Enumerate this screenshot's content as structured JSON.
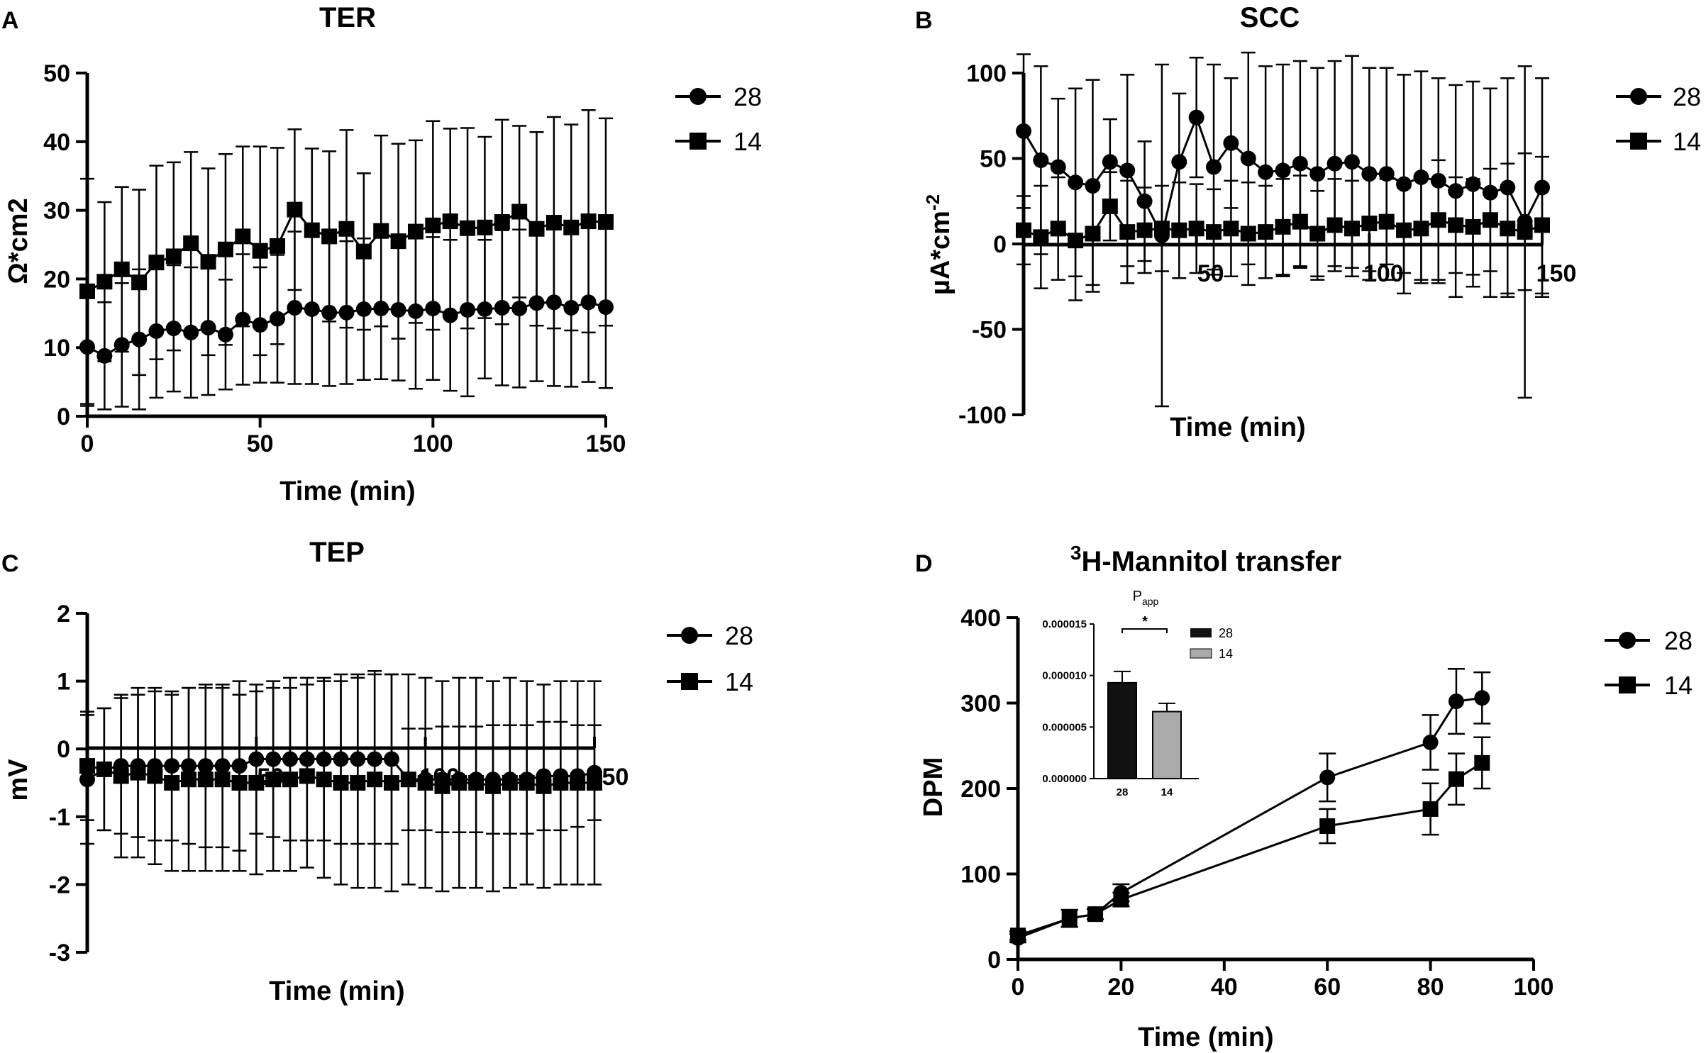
{
  "chart_data": [
    {
      "panel_label": "A",
      "type": "line",
      "title": "TER",
      "xlabel": "Time (min)",
      "ylabel": "Ω*cm2",
      "xlim": [
        0,
        150
      ],
      "ylim": [
        0,
        50
      ],
      "xticks": [
        "0",
        "50",
        "100",
        "150"
      ],
      "yticks": [
        "0",
        "10",
        "20",
        "30",
        "40",
        "50"
      ],
      "x": [
        0,
        5,
        10,
        15,
        20,
        25,
        30,
        35,
        40,
        45,
        50,
        55,
        60,
        65,
        70,
        75,
        80,
        85,
        90,
        95,
        100,
        105,
        110,
        115,
        120,
        125,
        130,
        135,
        140,
        145,
        150
      ],
      "series": [
        {
          "name": "28",
          "marker": "circle",
          "values": [
            10.1,
            8.8,
            10.4,
            11.2,
            12.4,
            12.8,
            12.2,
            12.9,
            11.9,
            14.1,
            13.3,
            14.2,
            15.8,
            15.6,
            15.1,
            15.1,
            15.6,
            15.7,
            15.5,
            15.3,
            15.7,
            14.7,
            15.5,
            15.6,
            15.8,
            15.7,
            16.5,
            16.6,
            15.8,
            16.6,
            15.9
          ],
          "errors": [
            8.6,
            7.8,
            9.0,
            10.2,
            9.7,
            9.2,
            9.5,
            9.8,
            8.0,
            9.5,
            8.4,
            9.3,
            11.1,
            10.9,
            10.7,
            10.4,
            10.3,
            10.3,
            10.3,
            11.3,
            10.4,
            11.0,
            12.6,
            10.1,
            11.3,
            11.5,
            11.4,
            12.2,
            11.5,
            11.6,
            11.8
          ]
        },
        {
          "name": "14",
          "marker": "square",
          "values": [
            18.2,
            19.6,
            21.4,
            19.5,
            22.4,
            23.3,
            25.2,
            22.5,
            24.3,
            26.2,
            24.1,
            24.8,
            30.1,
            27.1,
            26.2,
            27.3,
            24.0,
            27.0,
            25.5,
            26.9,
            27.8,
            28.4,
            27.4,
            27.5,
            28.3,
            29.8,
            27.3,
            28.2,
            27.5,
            28.4,
            28.3
          ],
          "errors": [
            16.4,
            11.6,
            12.0,
            13.5,
            14.1,
            13.7,
            13.3,
            13.6,
            13.9,
            13.1,
            15.2,
            14.3,
            11.7,
            11.9,
            12.4,
            14.4,
            11.4,
            13.9,
            14.2,
            13.3,
            15.2,
            13.5,
            14.6,
            13.2,
            14.9,
            12.5,
            14.1,
            15.4,
            15.0,
            16.2,
            15.1
          ]
        }
      ],
      "legend": [
        "28",
        "14"
      ]
    },
    {
      "panel_label": "B",
      "type": "line",
      "title": "SCC",
      "xlabel": "Time (min)",
      "ylabel_main": "µA*cm",
      "ylabel_sup": "-2",
      "xlim": [
        0,
        150
      ],
      "ylim": [
        -100,
        100
      ],
      "xticks": [
        "50",
        "100",
        "150"
      ],
      "yticks": [
        "-100",
        "-50",
        "0",
        "50",
        "100"
      ],
      "x": [
        0,
        5,
        10,
        15,
        20,
        25,
        30,
        35,
        40,
        45,
        50,
        55,
        60,
        65,
        70,
        75,
        80,
        85,
        90,
        95,
        100,
        105,
        110,
        115,
        120,
        125,
        130,
        135,
        140,
        145,
        150
      ],
      "series": [
        {
          "name": "28",
          "marker": "circle",
          "values": [
            66,
            49,
            45,
            36,
            34,
            48,
            43,
            25,
            5,
            48,
            74,
            45,
            59,
            50,
            42,
            43,
            47,
            41,
            47,
            48,
            41,
            41,
            35,
            39,
            37,
            31,
            35,
            30,
            33,
            13,
            33
          ],
          "errors": [
            45,
            55,
            40,
            55,
            62,
            25,
            56,
            35,
            100,
            40,
            35,
            60,
            38,
            62,
            62,
            62,
            60,
            62,
            60,
            62,
            62,
            62,
            64,
            62,
            60,
            62,
            60,
            61,
            64,
            40,
            64
          ]
        },
        {
          "name": "14",
          "marker": "square",
          "values": [
            8,
            4,
            9,
            2,
            6,
            22,
            7,
            8,
            9,
            8,
            9,
            7,
            9,
            6,
            7,
            10,
            13,
            6,
            11,
            9,
            12,
            13,
            8,
            9,
            14,
            11,
            10,
            14,
            9,
            7,
            11
          ],
          "errors": [
            20,
            30,
            30,
            35,
            30,
            20,
            30,
            25,
            25,
            28,
            26,
            25,
            28,
            30,
            27,
            28,
            27,
            25,
            27,
            28,
            28,
            25,
            25,
            30,
            35,
            28,
            28,
            30,
            38,
            97,
            40
          ]
        }
      ],
      "legend": [
        "28",
        "14"
      ]
    },
    {
      "panel_label": "C",
      "type": "line",
      "title": "TEP",
      "xlabel": "Time (min)",
      "ylabel": "mV",
      "xlim": [
        0,
        150
      ],
      "ylim": [
        -3,
        2
      ],
      "xticks": [
        "50",
        "100",
        "150"
      ],
      "yticks": [
        "-3",
        "-2",
        "-1",
        "0",
        "1",
        "2"
      ],
      "x": [
        0,
        5,
        10,
        15,
        20,
        25,
        30,
        35,
        40,
        45,
        50,
        55,
        60,
        65,
        70,
        75,
        80,
        85,
        90,
        95,
        100,
        105,
        110,
        115,
        120,
        125,
        130,
        135,
        140,
        145,
        150
      ],
      "series": [
        {
          "name": "28",
          "marker": "circle",
          "values": [
            -0.45,
            -0.3,
            -0.25,
            -0.25,
            -0.25,
            -0.25,
            -0.25,
            -0.25,
            -0.25,
            -0.25,
            -0.15,
            -0.15,
            -0.15,
            -0.15,
            -0.15,
            -0.15,
            -0.15,
            -0.15,
            -0.15,
            -0.45,
            -0.45,
            -0.45,
            -0.45,
            -0.45,
            -0.45,
            -0.45,
            -0.45,
            -0.4,
            -0.4,
            -0.4,
            -0.35
          ],
          "errors": [
            0.95,
            0.9,
            1.0,
            1.05,
            1.1,
            1.1,
            1.15,
            1.2,
            1.2,
            1.25,
            1.1,
            1.15,
            1.2,
            1.2,
            1.2,
            1.25,
            1.25,
            1.25,
            1.25,
            0.75,
            0.75,
            0.78,
            0.78,
            0.78,
            0.8,
            0.8,
            0.8,
            0.8,
            0.8,
            0.75,
            0.7
          ]
        },
        {
          "name": "14",
          "marker": "square",
          "values": [
            -0.25,
            -0.3,
            -0.4,
            -0.35,
            -0.4,
            -0.5,
            -0.45,
            -0.45,
            -0.45,
            -0.5,
            -0.5,
            -0.45,
            -0.45,
            -0.4,
            -0.45,
            -0.5,
            -0.5,
            -0.45,
            -0.5,
            -0.45,
            -0.5,
            -0.55,
            -0.5,
            -0.5,
            -0.55,
            -0.5,
            -0.5,
            -0.55,
            -0.5,
            -0.5,
            -0.5
          ],
          "errors": [
            0.8,
            0.9,
            1.2,
            1.25,
            1.3,
            1.3,
            1.35,
            1.35,
            1.35,
            1.3,
            1.35,
            1.35,
            1.35,
            1.35,
            1.45,
            1.5,
            1.55,
            1.6,
            1.6,
            1.55,
            1.55,
            1.55,
            1.55,
            1.55,
            1.55,
            1.55,
            1.5,
            1.5,
            1.5,
            1.5,
            1.5
          ]
        }
      ],
      "legend": [
        "28",
        "14"
      ]
    },
    {
      "panel_label": "D",
      "type": "line",
      "title_sup": "3",
      "title_main": "H-Mannitol transfer",
      "xlabel": "Time (min)",
      "ylabel": "DPM",
      "xlim": [
        0,
        100
      ],
      "ylim": [
        0,
        400
      ],
      "xticks": [
        "0",
        "20",
        "40",
        "60",
        "80",
        "100"
      ],
      "yticks": [
        "0",
        "100",
        "200",
        "300",
        "400"
      ],
      "x": [
        0,
        10,
        15,
        20,
        60,
        80,
        85,
        90
      ],
      "series": [
        {
          "name": "28",
          "marker": "circle",
          "values": [
            25,
            48,
            53,
            78,
            213,
            254,
            302,
            306
          ],
          "errors": [
            5,
            10,
            6,
            10,
            28,
            32,
            38,
            30
          ]
        },
        {
          "name": "14",
          "marker": "square",
          "values": [
            28,
            48,
            53,
            70,
            156,
            176,
            211,
            230
          ],
          "errors": [
            5,
            10,
            6,
            8,
            20,
            30,
            30,
            30
          ]
        }
      ],
      "legend": [
        "28",
        "14"
      ],
      "inset": {
        "type": "bar",
        "title_main": "P",
        "title_sub": "app",
        "categories": [
          "28",
          "14"
        ],
        "values": [
          9.3e-06,
          6.5e-06
        ],
        "errors": [
          1.1e-06,
          8e-07
        ],
        "ylim": [
          0,
          1.5e-05
        ],
        "yticks": [
          "0.000000",
          "0.000005",
          "0.000010",
          "0.000015"
        ],
        "colors": [
          "#111111",
          "#aaaaaa"
        ],
        "significance": "*",
        "legend": [
          "28",
          "14"
        ]
      }
    }
  ]
}
